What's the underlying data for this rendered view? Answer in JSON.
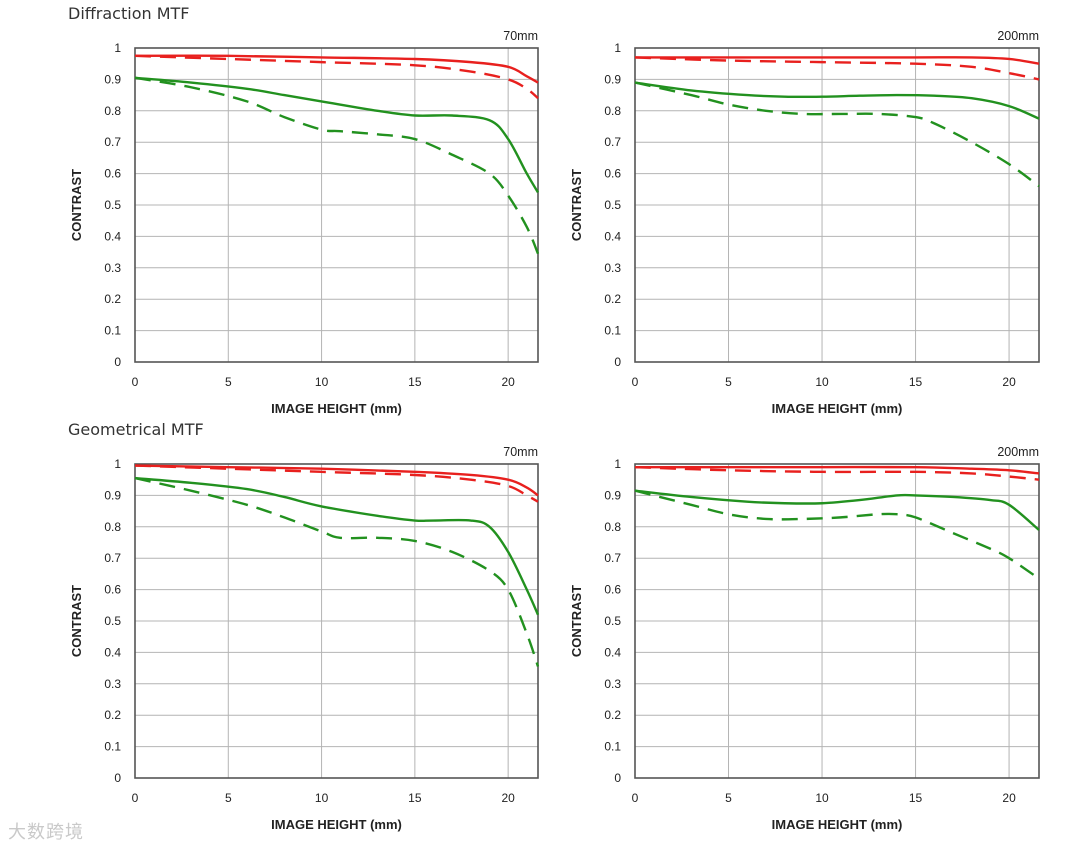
{
  "sections": [
    {
      "title": "Diffraction MTF"
    },
    {
      "title": "Geometrical MTF"
    }
  ],
  "watermark": "大数跨境",
  "colors": {
    "red": "#e8201e",
    "green": "#22911f",
    "grid": "#b4b4b4",
    "axis": "#555555",
    "text": "#222222"
  },
  "chart_data": [
    {
      "type": "line",
      "section": "Diffraction MTF",
      "focal": "70mm",
      "xlabel": "IMAGE HEIGHT (mm)",
      "ylabel": "CONTRAST",
      "xlim": [
        0,
        21.6
      ],
      "ylim": [
        0,
        1
      ],
      "xticks": [
        0,
        5,
        10,
        15,
        20
      ],
      "yticks": [
        0,
        0.1,
        0.2,
        0.3,
        0.4,
        0.5,
        0.6,
        0.7,
        0.8,
        0.9,
        1
      ],
      "grid": true,
      "series": [
        {
          "color": "red",
          "dash": false,
          "x": [
            0,
            5,
            10,
            15,
            18,
            20,
            21,
            21.6
          ],
          "y": [
            0.975,
            0.975,
            0.97,
            0.965,
            0.955,
            0.94,
            0.91,
            0.89
          ]
        },
        {
          "color": "red",
          "dash": true,
          "x": [
            0,
            5,
            10,
            15,
            18,
            20,
            21,
            21.6
          ],
          "y": [
            0.975,
            0.965,
            0.955,
            0.945,
            0.925,
            0.9,
            0.87,
            0.84
          ]
        },
        {
          "color": "green",
          "dash": false,
          "x": [
            0,
            3,
            6,
            8,
            10,
            13,
            15,
            17,
            19,
            20,
            21,
            21.6
          ],
          "y": [
            0.905,
            0.89,
            0.87,
            0.85,
            0.83,
            0.8,
            0.785,
            0.785,
            0.77,
            0.71,
            0.6,
            0.54
          ]
        },
        {
          "color": "green",
          "dash": true,
          "x": [
            0,
            3,
            6,
            8,
            10,
            11,
            13,
            15,
            17,
            19,
            20,
            21,
            21.6
          ],
          "y": [
            0.905,
            0.875,
            0.83,
            0.78,
            0.74,
            0.735,
            0.725,
            0.71,
            0.66,
            0.6,
            0.53,
            0.43,
            0.345
          ]
        }
      ]
    },
    {
      "type": "line",
      "section": "Diffraction MTF",
      "focal": "200mm",
      "xlabel": "IMAGE HEIGHT (mm)",
      "ylabel": "CONTRAST",
      "xlim": [
        0,
        21.6
      ],
      "ylim": [
        0,
        1
      ],
      "xticks": [
        0,
        5,
        10,
        15,
        20
      ],
      "yticks": [
        0,
        0.1,
        0.2,
        0.3,
        0.4,
        0.5,
        0.6,
        0.7,
        0.8,
        0.9,
        1
      ],
      "grid": true,
      "series": [
        {
          "color": "red",
          "dash": false,
          "x": [
            0,
            5,
            10,
            15,
            18,
            20,
            21.6
          ],
          "y": [
            0.97,
            0.97,
            0.97,
            0.97,
            0.97,
            0.965,
            0.95
          ]
        },
        {
          "color": "red",
          "dash": true,
          "x": [
            0,
            5,
            10,
            15,
            18,
            20,
            21.6
          ],
          "y": [
            0.97,
            0.96,
            0.955,
            0.95,
            0.94,
            0.92,
            0.9
          ]
        },
        {
          "color": "green",
          "dash": false,
          "x": [
            0,
            3,
            6,
            8,
            10,
            12,
            14,
            16,
            18,
            20,
            21.6
          ],
          "y": [
            0.89,
            0.865,
            0.85,
            0.845,
            0.845,
            0.848,
            0.85,
            0.848,
            0.84,
            0.815,
            0.775
          ]
        },
        {
          "color": "green",
          "dash": true,
          "x": [
            0,
            3,
            5,
            7,
            9,
            11,
            13,
            15,
            16,
            18,
            20,
            21.6
          ],
          "y": [
            0.89,
            0.85,
            0.82,
            0.8,
            0.79,
            0.79,
            0.79,
            0.78,
            0.76,
            0.7,
            0.63,
            0.56
          ]
        }
      ]
    },
    {
      "type": "line",
      "section": "Geometrical MTF",
      "focal": "70mm",
      "xlabel": "IMAGE HEIGHT (mm)",
      "ylabel": "CONTRAST",
      "xlim": [
        0,
        21.6
      ],
      "ylim": [
        0,
        1
      ],
      "xticks": [
        0,
        5,
        10,
        15,
        20
      ],
      "yticks": [
        0,
        0.1,
        0.2,
        0.3,
        0.4,
        0.5,
        0.6,
        0.7,
        0.8,
        0.9,
        1
      ],
      "grid": true,
      "series": [
        {
          "color": "red",
          "dash": false,
          "x": [
            0,
            5,
            10,
            15,
            18,
            20,
            21,
            21.6
          ],
          "y": [
            0.995,
            0.99,
            0.985,
            0.975,
            0.965,
            0.95,
            0.925,
            0.9
          ]
        },
        {
          "color": "red",
          "dash": true,
          "x": [
            0,
            5,
            10,
            15,
            18,
            20,
            21,
            21.6
          ],
          "y": [
            0.995,
            0.985,
            0.975,
            0.965,
            0.95,
            0.93,
            0.9,
            0.88
          ]
        },
        {
          "color": "green",
          "dash": false,
          "x": [
            0,
            3,
            6,
            8,
            10,
            13,
            15,
            16,
            18,
            19,
            20,
            21,
            21.6
          ],
          "y": [
            0.955,
            0.94,
            0.92,
            0.895,
            0.865,
            0.835,
            0.82,
            0.82,
            0.82,
            0.8,
            0.72,
            0.6,
            0.52
          ]
        },
        {
          "color": "green",
          "dash": true,
          "x": [
            0,
            3,
            6,
            8,
            10,
            11,
            13,
            15,
            17,
            19,
            20,
            21,
            21.6
          ],
          "y": [
            0.955,
            0.915,
            0.87,
            0.83,
            0.785,
            0.765,
            0.765,
            0.755,
            0.72,
            0.66,
            0.6,
            0.46,
            0.355
          ]
        }
      ]
    },
    {
      "type": "line",
      "section": "Geometrical MTF",
      "focal": "200mm",
      "xlabel": "IMAGE HEIGHT (mm)",
      "ylabel": "CONTRAST",
      "xlim": [
        0,
        21.6
      ],
      "ylim": [
        0,
        1
      ],
      "xticks": [
        0,
        5,
        10,
        15,
        20
      ],
      "yticks": [
        0,
        0.1,
        0.2,
        0.3,
        0.4,
        0.5,
        0.6,
        0.7,
        0.8,
        0.9,
        1
      ],
      "grid": true,
      "series": [
        {
          "color": "red",
          "dash": false,
          "x": [
            0,
            5,
            10,
            15,
            18,
            20,
            21.6
          ],
          "y": [
            0.99,
            0.99,
            0.99,
            0.99,
            0.985,
            0.98,
            0.97
          ]
        },
        {
          "color": "red",
          "dash": true,
          "x": [
            0,
            5,
            10,
            15,
            18,
            20,
            21.6
          ],
          "y": [
            0.99,
            0.98,
            0.975,
            0.975,
            0.97,
            0.96,
            0.95
          ]
        },
        {
          "color": "green",
          "dash": false,
          "x": [
            0,
            3,
            6,
            8,
            10,
            12,
            14,
            15,
            17,
            19,
            20,
            21.6
          ],
          "y": [
            0.915,
            0.895,
            0.88,
            0.875,
            0.875,
            0.885,
            0.9,
            0.9,
            0.895,
            0.885,
            0.87,
            0.79
          ]
        },
        {
          "color": "green",
          "dash": true,
          "x": [
            0,
            3,
            5,
            7,
            9,
            11,
            13,
            14,
            15,
            17,
            19,
            20,
            21.6
          ],
          "y": [
            0.915,
            0.87,
            0.84,
            0.825,
            0.825,
            0.83,
            0.84,
            0.84,
            0.83,
            0.78,
            0.73,
            0.7,
            0.635
          ]
        }
      ]
    }
  ]
}
